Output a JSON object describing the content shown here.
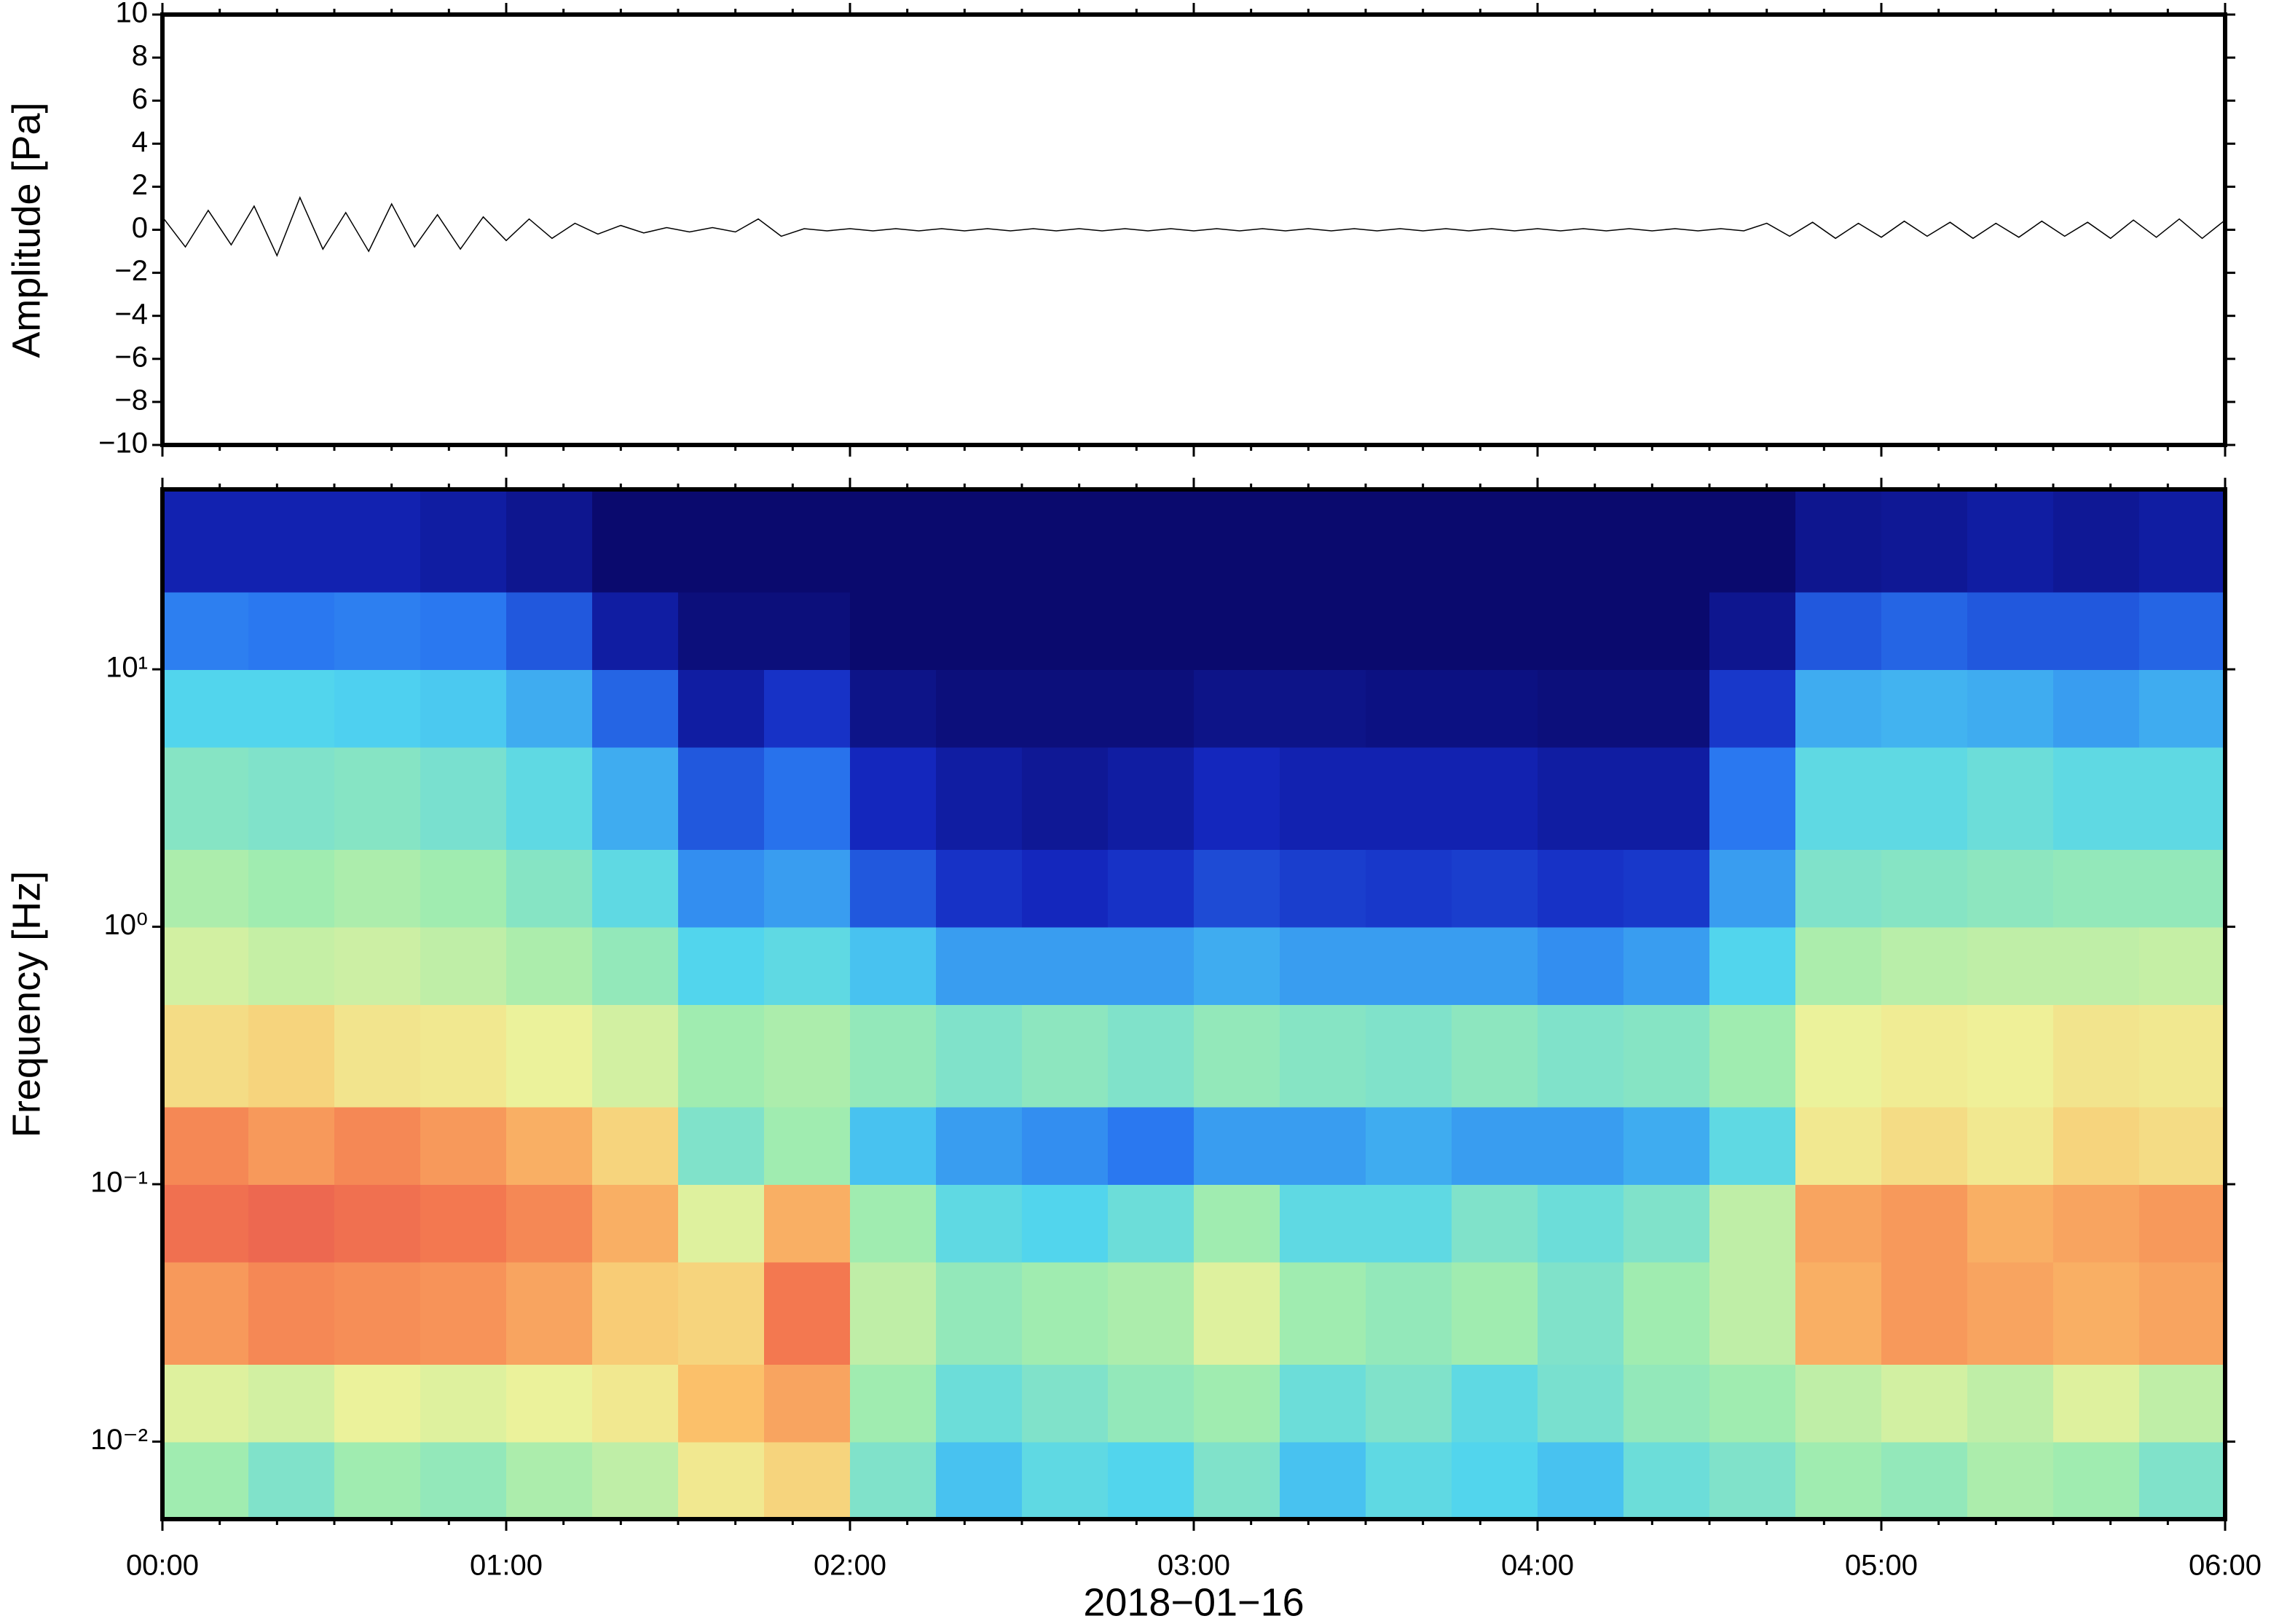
{
  "chart_data": [
    {
      "type": "line",
      "ylabel": "Amplitude [Pa]",
      "color": "#000000",
      "xlim": [
        0,
        360
      ],
      "ylim": [
        -10,
        10
      ],
      "yticks": [
        {
          "value": -10,
          "label": "−10"
        },
        {
          "value": -8,
          "label": "−8"
        },
        {
          "value": -6,
          "label": "−6"
        },
        {
          "value": -4,
          "label": "−4"
        },
        {
          "value": -2,
          "label": "−2"
        },
        0,
        2,
        4,
        6,
        8,
        10
      ],
      "x": [
        0,
        4,
        8,
        12,
        16,
        20,
        24,
        28,
        32,
        36,
        40,
        44,
        48,
        52,
        56,
        60,
        64,
        68,
        72,
        76,
        80,
        84,
        88,
        92,
        96,
        100,
        104,
        108,
        112,
        116,
        120,
        124,
        128,
        132,
        136,
        140,
        144,
        148,
        152,
        156,
        160,
        164,
        168,
        172,
        176,
        180,
        184,
        188,
        192,
        196,
        200,
        204,
        208,
        212,
        216,
        220,
        224,
        228,
        232,
        236,
        240,
        244,
        248,
        252,
        256,
        260,
        264,
        268,
        272,
        276,
        280,
        284,
        288,
        292,
        296,
        300,
        304,
        308,
        312,
        316,
        320,
        324,
        328,
        332,
        336,
        340,
        344,
        348,
        352,
        356,
        360
      ],
      "values": [
        0.6,
        -0.8,
        0.9,
        -0.7,
        1.1,
        -1.2,
        1.5,
        -0.9,
        0.8,
        -1.0,
        1.2,
        -0.8,
        0.7,
        -0.9,
        0.6,
        -0.5,
        0.5,
        -0.4,
        0.3,
        -0.2,
        0.2,
        -0.15,
        0.1,
        -0.1,
        0.1,
        -0.1,
        0.5,
        -0.3,
        0.05,
        -0.05,
        0.05,
        -0.05,
        0.05,
        -0.05,
        0.05,
        -0.05,
        0.05,
        -0.05,
        0.05,
        -0.05,
        0.05,
        -0.05,
        0.05,
        -0.05,
        0.05,
        -0.05,
        0.05,
        -0.05,
        0.05,
        -0.05,
        0.05,
        -0.05,
        0.05,
        -0.05,
        0.05,
        -0.05,
        0.05,
        -0.05,
        0.05,
        -0.05,
        0.05,
        -0.05,
        0.05,
        -0.05,
        0.05,
        -0.05,
        0.05,
        -0.05,
        0.05,
        -0.05,
        0.3,
        -0.3,
        0.35,
        -0.4,
        0.3,
        -0.35,
        0.4,
        -0.3,
        0.35,
        -0.4,
        0.3,
        -0.35,
        0.4,
        -0.3,
        0.35,
        -0.4,
        0.45,
        -0.35,
        0.5,
        -0.4,
        0.45
      ]
    },
    {
      "type": "heatmap",
      "ylabel": "Frequency [Hz]",
      "xlabel": "2018−01−16",
      "xlim": [
        0,
        360
      ],
      "ylim": [
        0.005,
        50
      ],
      "log_y": true,
      "xticks": [
        {
          "value": 0,
          "label": "00:00"
        },
        {
          "value": 60,
          "label": "01:00"
        },
        {
          "value": 120,
          "label": "02:00"
        },
        {
          "value": 180,
          "label": "03:00"
        },
        {
          "value": 240,
          "label": "04:00"
        },
        {
          "value": 300,
          "label": "05:00"
        },
        {
          "value": 360,
          "label": "06:00"
        }
      ],
      "yticks": [
        {
          "value": 0.01,
          "label": "10⁻²"
        },
        {
          "value": 0.1,
          "label": "10⁻¹"
        },
        {
          "value": 1,
          "label": "10⁰"
        },
        {
          "value": 10,
          "label": "10¹"
        }
      ],
      "zlim": [
        0,
        1
      ],
      "colormap": [
        "#0a0a6e",
        "#1428c0",
        "#2a78f0",
        "#4fd4f0",
        "#a0ecb0",
        "#eef29a",
        "#fbc06a",
        "#f47a50",
        "#e0484f"
      ],
      "xbins": [
        0,
        15,
        30,
        45,
        60,
        75,
        90,
        105,
        120,
        135,
        150,
        165,
        180,
        195,
        210,
        225,
        240,
        255,
        270,
        285,
        300,
        315,
        330,
        345,
        360
      ],
      "ybins": [
        0.005,
        0.01,
        0.02,
        0.05,
        0.1,
        0.2,
        0.5,
        1,
        2,
        5,
        10,
        20,
        50
      ],
      "z": [
        [
          0.5,
          0.45,
          0.5,
          0.48,
          0.52,
          0.55,
          0.65,
          0.7,
          0.45,
          0.35,
          0.4,
          0.38,
          0.45,
          0.35,
          0.4,
          0.38,
          0.35,
          0.42,
          0.45,
          0.5,
          0.48,
          0.52,
          0.5,
          0.45
        ],
        [
          0.6,
          0.58,
          0.62,
          0.6,
          0.62,
          0.65,
          0.75,
          0.8,
          0.5,
          0.42,
          0.45,
          0.48,
          0.5,
          0.42,
          0.45,
          0.4,
          0.44,
          0.48,
          0.5,
          0.55,
          0.58,
          0.55,
          0.6,
          0.55
        ],
        [
          0.82,
          0.85,
          0.84,
          0.83,
          0.8,
          0.72,
          0.7,
          0.88,
          0.55,
          0.48,
          0.5,
          0.52,
          0.6,
          0.5,
          0.48,
          0.5,
          0.45,
          0.5,
          0.55,
          0.78,
          0.82,
          0.8,
          0.78,
          0.8
        ],
        [
          0.9,
          0.92,
          0.9,
          0.88,
          0.85,
          0.78,
          0.6,
          0.78,
          0.5,
          0.4,
          0.38,
          0.42,
          0.5,
          0.4,
          0.4,
          0.45,
          0.42,
          0.45,
          0.55,
          0.8,
          0.82,
          0.78,
          0.8,
          0.82
        ],
        [
          0.85,
          0.82,
          0.85,
          0.82,
          0.78,
          0.7,
          0.45,
          0.5,
          0.35,
          0.3,
          0.28,
          0.25,
          0.3,
          0.3,
          0.32,
          0.3,
          0.3,
          0.32,
          0.4,
          0.65,
          0.68,
          0.65,
          0.7,
          0.68
        ],
        [
          0.68,
          0.7,
          0.66,
          0.65,
          0.62,
          0.58,
          0.5,
          0.52,
          0.48,
          0.45,
          0.47,
          0.45,
          0.48,
          0.46,
          0.45,
          0.47,
          0.45,
          0.46,
          0.5,
          0.62,
          0.64,
          0.63,
          0.66,
          0.65
        ],
        [
          0.58,
          0.56,
          0.57,
          0.55,
          0.52,
          0.48,
          0.38,
          0.4,
          0.35,
          0.3,
          0.3,
          0.3,
          0.32,
          0.3,
          0.3,
          0.3,
          0.28,
          0.3,
          0.38,
          0.52,
          0.54,
          0.55,
          0.55,
          0.56
        ],
        [
          0.52,
          0.5,
          0.52,
          0.5,
          0.46,
          0.4,
          0.28,
          0.3,
          0.2,
          0.14,
          0.12,
          0.14,
          0.18,
          0.16,
          0.15,
          0.16,
          0.14,
          0.15,
          0.3,
          0.45,
          0.46,
          0.47,
          0.48,
          0.48
        ],
        [
          0.46,
          0.45,
          0.46,
          0.44,
          0.4,
          0.32,
          0.2,
          0.24,
          0.12,
          0.08,
          0.06,
          0.08,
          0.12,
          0.1,
          0.1,
          0.1,
          0.08,
          0.08,
          0.25,
          0.4,
          0.4,
          0.42,
          0.4,
          0.4
        ],
        [
          0.38,
          0.38,
          0.37,
          0.36,
          0.32,
          0.22,
          0.08,
          0.14,
          0.04,
          0.02,
          0.02,
          0.02,
          0.04,
          0.04,
          0.03,
          0.03,
          0.02,
          0.02,
          0.15,
          0.32,
          0.33,
          0.32,
          0.3,
          0.32
        ],
        [
          0.26,
          0.25,
          0.26,
          0.25,
          0.2,
          0.08,
          0.02,
          0.02,
          0,
          0,
          0,
          0,
          0,
          0,
          0,
          0,
          0,
          0,
          0.05,
          0.2,
          0.22,
          0.2,
          0.2,
          0.22
        ],
        [
          0.1,
          0.1,
          0.1,
          0.08,
          0.05,
          0,
          0,
          0,
          0,
          0,
          0,
          0,
          0,
          0,
          0,
          0,
          0,
          0,
          0,
          0.05,
          0.06,
          0.08,
          0.06,
          0.08
        ]
      ]
    }
  ]
}
